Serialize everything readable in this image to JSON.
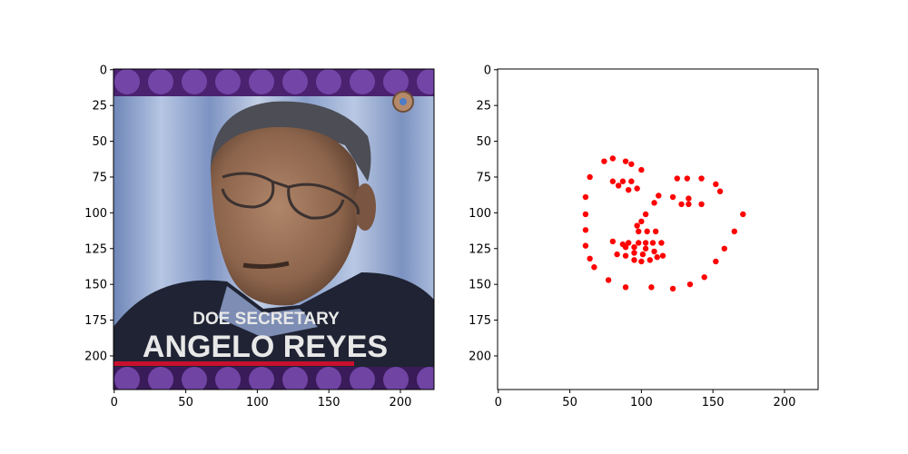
{
  "colors": {
    "marker": "#ff0000",
    "axis": "#000000",
    "background": "#ffffff",
    "frame_bar": "#5b2d86",
    "frame_dot": "#7a4bb0",
    "caption_underline": "#c8102e",
    "suit": "#1e2233",
    "shirt": "#7f8fb5",
    "skin": "#9a7056",
    "curtain": "#8ea6cf"
  },
  "left_panel": {
    "image_label": "face photo with caption",
    "caption_line1": "DOE SECRETARY",
    "caption_line2": "ANGELO REYES",
    "x_ticks": [
      "0",
      "50",
      "100",
      "150",
      "200"
    ],
    "y_ticks": [
      "0",
      "25",
      "50",
      "75",
      "100",
      "125",
      "150",
      "175",
      "200"
    ],
    "xlim": [
      -0.5,
      223.5
    ],
    "ylim": [
      223.5,
      -0.5
    ]
  },
  "chart_data": {
    "type": "scatter",
    "title": "",
    "xlabel": "",
    "ylabel": "",
    "xlim": [
      -0.5,
      223.5
    ],
    "ylim": [
      223.5,
      -0.5
    ],
    "y_inverted": true,
    "grid": false,
    "x_ticks": [
      "0",
      "50",
      "100",
      "150",
      "200"
    ],
    "y_ticks": [
      "0",
      "25",
      "50",
      "75",
      "100",
      "125",
      "150",
      "175",
      "200"
    ],
    "marker_color": "#ff0000",
    "points": [
      [
        64,
        75
      ],
      [
        61,
        89
      ],
      [
        61,
        101
      ],
      [
        61,
        112
      ],
      [
        61,
        123
      ],
      [
        64,
        132
      ],
      [
        67,
        138
      ],
      [
        77,
        147
      ],
      [
        89,
        152
      ],
      [
        107,
        152
      ],
      [
        122,
        153
      ],
      [
        134,
        150
      ],
      [
        144,
        145
      ],
      [
        152,
        134
      ],
      [
        158,
        125
      ],
      [
        165,
        113
      ],
      [
        171,
        101
      ],
      [
        74,
        64
      ],
      [
        80,
        62
      ],
      [
        89,
        64
      ],
      [
        93,
        66
      ],
      [
        100,
        70
      ],
      [
        125,
        76
      ],
      [
        132,
        76
      ],
      [
        142,
        76
      ],
      [
        152,
        80
      ],
      [
        155,
        85
      ],
      [
        97,
        109
      ],
      [
        100,
        106
      ],
      [
        103,
        101
      ],
      [
        109,
        93
      ],
      [
        112,
        88
      ],
      [
        91,
        121
      ],
      [
        98,
        121
      ],
      [
        103,
        121
      ],
      [
        108,
        121
      ],
      [
        114,
        121
      ],
      [
        80,
        78
      ],
      [
        84,
        81
      ],
      [
        87,
        78
      ],
      [
        93,
        78
      ],
      [
        97,
        83
      ],
      [
        91,
        84
      ],
      [
        122,
        89
      ],
      [
        128,
        94
      ],
      [
        133,
        90
      ],
      [
        133,
        94
      ],
      [
        142,
        94
      ],
      [
        80,
        120
      ],
      [
        87,
        122
      ],
      [
        95,
        124
      ],
      [
        103,
        125
      ],
      [
        109,
        127
      ],
      [
        115,
        130
      ],
      [
        111,
        131
      ],
      [
        106,
        133
      ],
      [
        100,
        134
      ],
      [
        95,
        133
      ],
      [
        89,
        130
      ],
      [
        83,
        129
      ],
      [
        89,
        124
      ],
      [
        95,
        128
      ],
      [
        101,
        129
      ],
      [
        98,
        113
      ],
      [
        104,
        113
      ],
      [
        110,
        113
      ]
    ]
  }
}
